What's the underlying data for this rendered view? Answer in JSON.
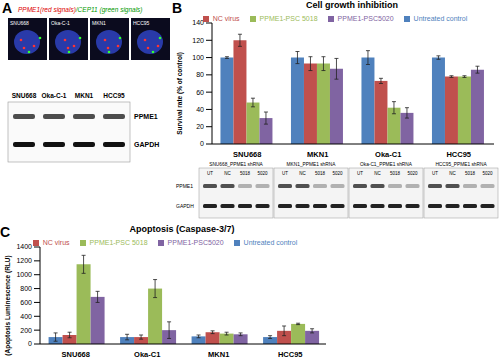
{
  "panel_a": {
    "label": "A",
    "fish_title_red": "PPME1(red signals)",
    "fish_title_green": "/CEP11 (green signals)",
    "cell_lines": [
      "SNU668",
      "Oka-C-1",
      "MKN1",
      "HCC95"
    ],
    "blot_rows": [
      "PPME1",
      "GAPDH"
    ]
  },
  "panel_b_blots": {
    "groups": [
      "SNU668_PPME1 shRNA",
      "MKN1_PPME1 shRNA",
      "Oka-C1_PPME1 shRNA",
      "HCC95_PPME1 shRNA"
    ],
    "lanes": [
      "UT",
      "NC",
      "5018",
      "5020"
    ],
    "rows": [
      "PPME1",
      "GAPDH"
    ]
  },
  "chart_data": [
    {
      "panel": "B",
      "type": "bar",
      "title": "Cell growth inhibition",
      "y_label": "Survival rate (% of control)",
      "categories": [
        "SNU668",
        "MKN1",
        "Oka-C1",
        "HCC95"
      ],
      "series": [
        {
          "name": "Untreated control",
          "color": "#4f81bd",
          "values": [
            100,
            100,
            100,
            100
          ],
          "errors": [
            1,
            7,
            8,
            2
          ]
        },
        {
          "name": "NC virus",
          "color": "#c0504d",
          "values": [
            120,
            93,
            73,
            78
          ],
          "errors": [
            7,
            8,
            3,
            1
          ]
        },
        {
          "name": "PPME1-PSC 5018",
          "color": "#9bbb59",
          "values": [
            48,
            93,
            42,
            78
          ],
          "errors": [
            5,
            8,
            7,
            1
          ]
        },
        {
          "name": "PPME1-PSC5020",
          "color": "#8064a2",
          "values": [
            30,
            87,
            36,
            86
          ],
          "errors": [
            7,
            12,
            6,
            4
          ]
        }
      ],
      "ylim": [
        0,
        140
      ],
      "yticks": [
        0,
        20,
        40,
        60,
        80,
        100,
        120,
        140
      ],
      "legend": "top",
      "grid": false
    },
    {
      "panel": "C",
      "type": "bar",
      "title": "Apoptosis (Caspase-3/7)",
      "y_label": "(Apoptosis Luminescence (RLU)",
      "categories": [
        "SNU668",
        "Oka-C1",
        "MKN1",
        "HCC95"
      ],
      "series": [
        {
          "name": "Untreated control",
          "color": "#4f81bd",
          "values": [
            100,
            100,
            110,
            100
          ],
          "errors": [
            60,
            40,
            20,
            20
          ]
        },
        {
          "name": "NC virus",
          "color": "#c0504d",
          "values": [
            130,
            100,
            170,
            190
          ],
          "errors": [
            40,
            30,
            20,
            70
          ]
        },
        {
          "name": "PPME1-PSC 5018",
          "color": "#9bbb59",
          "values": [
            1150,
            800,
            150,
            290
          ],
          "errors": [
            130,
            130,
            20,
            10
          ]
        },
        {
          "name": "PPME1-PSC5020",
          "color": "#8064a2",
          "values": [
            680,
            200,
            140,
            190
          ],
          "errors": [
            80,
            120,
            20,
            30
          ]
        }
      ],
      "ylim": [
        0,
        1400
      ],
      "yticks": [
        0,
        200,
        400,
        600,
        800,
        1000,
        1200,
        1400
      ],
      "legend": "top",
      "grid": false
    }
  ]
}
